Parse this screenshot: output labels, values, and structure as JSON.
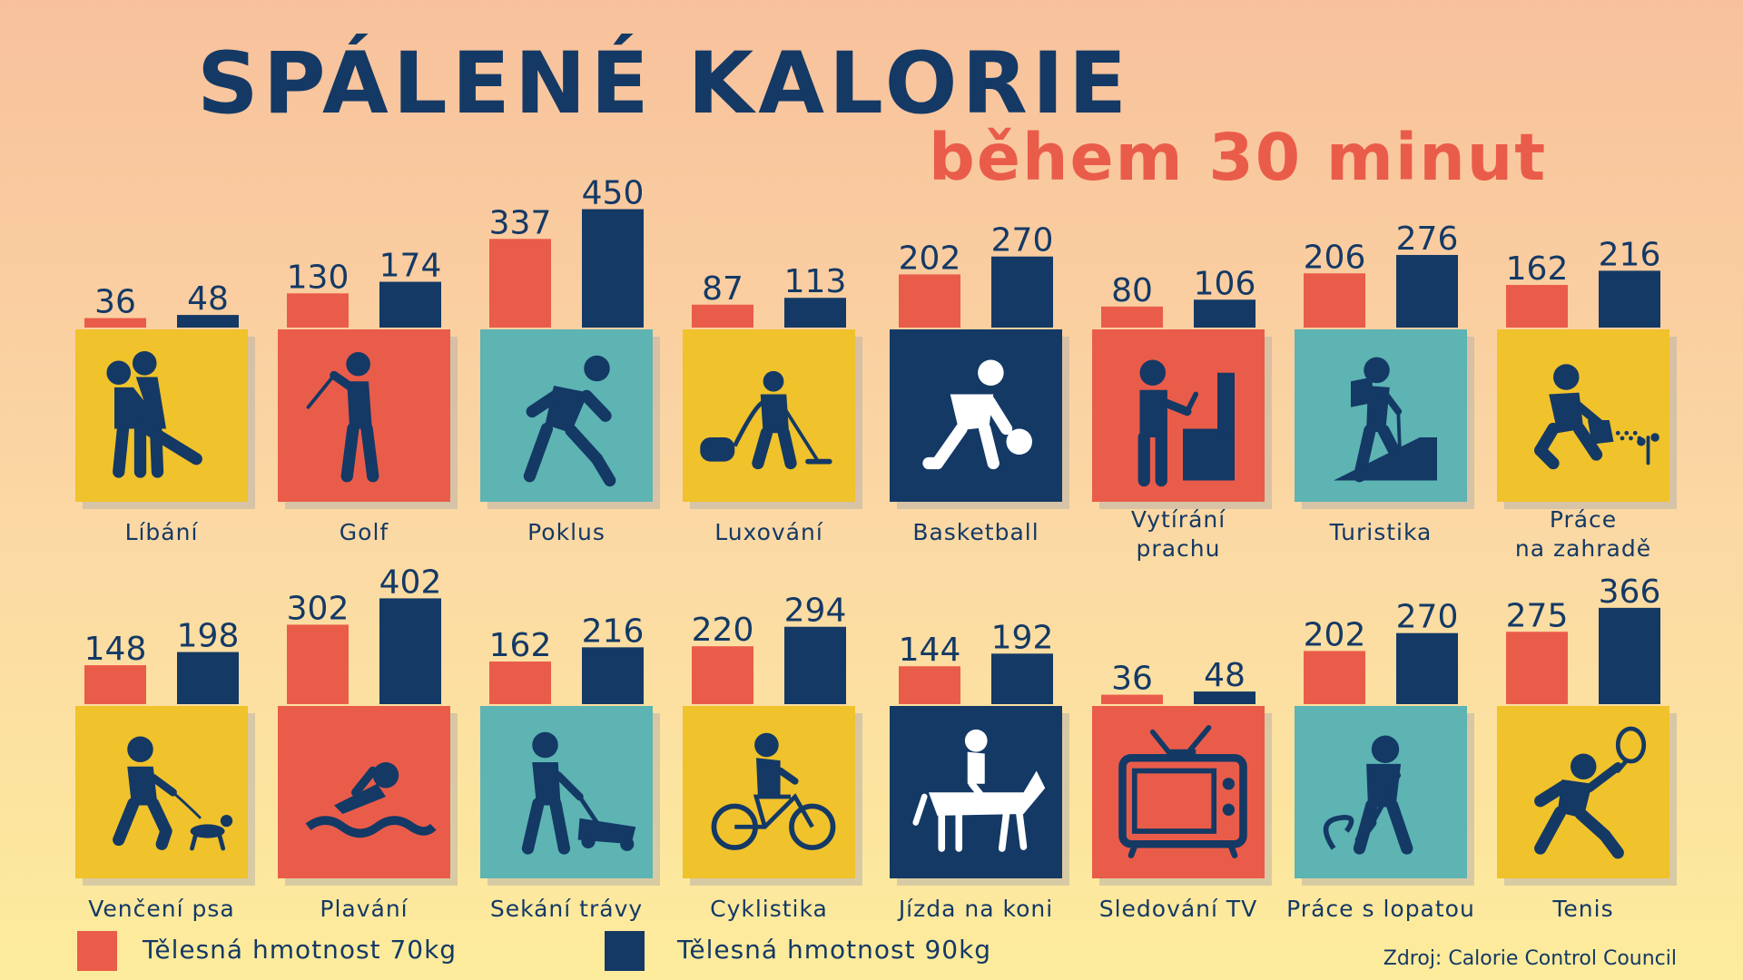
{
  "title": "SPÁLENÉ KALORIE",
  "subtitle": "během 30 minut",
  "source": "Zdroj: Calorie Control Council",
  "colors": {
    "series_70": "#ea5c4a",
    "series_90": "#143965",
    "tile_yellow": "#f0c22c",
    "tile_red": "#ea5c4a",
    "tile_teal": "#5db4b3",
    "tile_navy": "#143965"
  },
  "legend": [
    {
      "label": "Tělesná hmotnost 70kg",
      "color": "#ea5c4a"
    },
    {
      "label": "Tělesná hmotnost 90kg",
      "color": "#143965"
    }
  ],
  "chart_data": {
    "type": "bar",
    "title": "SPÁLENÉ KALORIE",
    "subtitle": "během 30 minut",
    "series": [
      {
        "name": "Tělesná hmotnost 70kg",
        "color": "#ea5c4a"
      },
      {
        "name": "Tělesná hmotnost 90kg",
        "color": "#143965"
      }
    ],
    "activities": [
      {
        "label": "Líbání",
        "v70": 36,
        "v90": 48,
        "tile": "yellow",
        "icon": "kissing-icon"
      },
      {
        "label": "Golf",
        "v70": 130,
        "v90": 174,
        "tile": "red",
        "icon": "golf-icon"
      },
      {
        "label": "Poklus",
        "v70": 337,
        "v90": 450,
        "tile": "teal",
        "icon": "jogging-icon"
      },
      {
        "label": "Luxování",
        "v70": 87,
        "v90": 113,
        "tile": "yellow",
        "icon": "vacuuming-icon"
      },
      {
        "label": "Basketball",
        "v70": 202,
        "v90": 270,
        "tile": "navy",
        "icon": "basketball-icon"
      },
      {
        "label": "Vytírání prachu",
        "v70": 80,
        "v90": 106,
        "tile": "red",
        "icon": "dusting-icon"
      },
      {
        "label": "Turistika",
        "v70": 206,
        "v90": 276,
        "tile": "teal",
        "icon": "hiking-icon"
      },
      {
        "label": "Práce na zahradě",
        "v70": 162,
        "v90": 216,
        "tile": "yellow",
        "icon": "gardening-icon"
      },
      {
        "label": "Venčení psa",
        "v70": 148,
        "v90": 198,
        "tile": "yellow",
        "icon": "dog-walking-icon"
      },
      {
        "label": "Plavání",
        "v70": 302,
        "v90": 402,
        "tile": "red",
        "icon": "swimming-icon"
      },
      {
        "label": "Sekání trávy",
        "v70": 162,
        "v90": 216,
        "tile": "teal",
        "icon": "lawn-mowing-icon"
      },
      {
        "label": "Cyklistika",
        "v70": 220,
        "v90": 294,
        "tile": "yellow",
        "icon": "cycling-icon"
      },
      {
        "label": "Jízda na koni",
        "v70": 144,
        "v90": 192,
        "tile": "navy",
        "icon": "horse-riding-icon"
      },
      {
        "label": "Sledování TV",
        "v70": 36,
        "v90": 48,
        "tile": "red",
        "icon": "tv-icon"
      },
      {
        "label": "Práce s lopatou",
        "v70": 202,
        "v90": 270,
        "tile": "teal",
        "icon": "shoveling-icon"
      },
      {
        "label": "Tenis",
        "v70": 275,
        "v90": 366,
        "tile": "yellow",
        "icon": "tennis-icon"
      }
    ]
  }
}
